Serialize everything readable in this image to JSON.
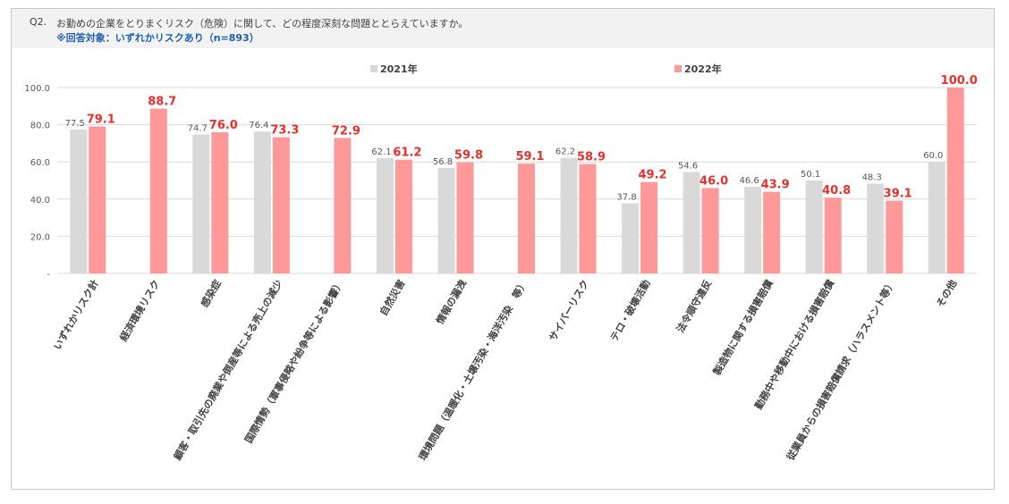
{
  "header": {
    "question_number": "Q2.",
    "question_text": "お勤めの企業をとりまくリスク（危険）に関して、どの程度深刻な問題ととらえていますか。",
    "target_note": "※回答対象：いずれかリスクあり（n=893）"
  },
  "chart_data": {
    "type": "bar",
    "title": "",
    "xlabel": "",
    "ylabel": "",
    "ylim": [
      0,
      100
    ],
    "yticks": [
      "-",
      "20.0",
      "40.0",
      "60.0",
      "80.0",
      "100.0"
    ],
    "grid": true,
    "legend_position": "top",
    "categories": [
      "いずれかリスク計",
      "経済環境リスク",
      "感染症",
      "顧客・取引先の廃業や倒産等による売上の減少",
      "国際情勢（軍事侵略や紛争等による影響）",
      "自然災害",
      "情報の漏洩",
      "環境問題（温暖化・土壌汚染・海洋汚染　等）",
      "サイバーリスク",
      "テロ・破壊活動",
      "法令順守違反",
      "製造物に関する損害賠償",
      "勤務中や移動中における損害賠償",
      "従業員からの損害賠償請求（ハラスメント等）",
      "その他"
    ],
    "series": [
      {
        "name": "2021年",
        "color": "#d9d9d9",
        "label_color": "#595959",
        "values": [
          77.5,
          null,
          74.7,
          76.4,
          null,
          62.1,
          56.8,
          null,
          62.2,
          37.8,
          54.6,
          46.6,
          50.1,
          48.3,
          60.0
        ],
        "labels": [
          "77.5",
          "",
          "74.7",
          "76.4",
          "",
          "62.1",
          "56.8",
          "",
          "62.2",
          "37.8",
          "54.6",
          "46.6",
          "50.1",
          "48.3",
          "60.0"
        ]
      },
      {
        "name": "2022年",
        "color": "#ff9999",
        "label_color": "#e8302b",
        "values": [
          79.1,
          88.7,
          76.0,
          73.3,
          72.9,
          61.2,
          59.8,
          59.1,
          58.9,
          49.2,
          46.0,
          43.9,
          40.8,
          39.1,
          100.0
        ],
        "labels": [
          "79.1",
          "88.7",
          "76.0",
          "73.3",
          "72.9",
          "61.2",
          "59.8",
          "59.1",
          "58.9",
          "49.2",
          "46.0",
          "43.9",
          "40.8",
          "39.1",
          "100.0"
        ]
      }
    ]
  }
}
